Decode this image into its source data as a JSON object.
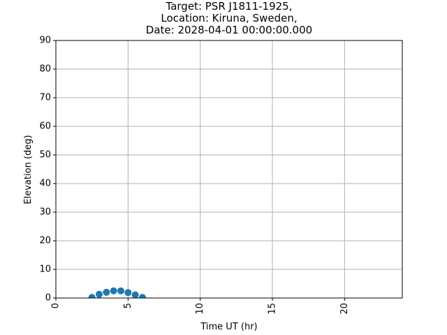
{
  "chart_data": {
    "type": "scatter",
    "title_lines": [
      "Target: PSR J1811-1925,",
      "Location: Kiruna, Sweden,",
      "Date: 2028-04-01 00:00:00.000"
    ],
    "xlabel": "Time UT (hr)",
    "ylabel": "Elevation (deg)",
    "xlim": [
      0,
      24
    ],
    "ylim": [
      0,
      90
    ],
    "xticks": [
      0,
      5,
      10,
      15,
      20
    ],
    "yticks": [
      0,
      10,
      20,
      30,
      40,
      50,
      60,
      70,
      80,
      90
    ],
    "grid": true,
    "marker_color": "#1f77b4",
    "series": [
      {
        "x": [
          2.5,
          3.0,
          3.5,
          4.0,
          4.5,
          5.0,
          5.5,
          6.0
        ],
        "y": [
          0.2,
          1.3,
          2.0,
          2.5,
          2.5,
          1.9,
          1.1,
          0.2
        ]
      }
    ]
  }
}
